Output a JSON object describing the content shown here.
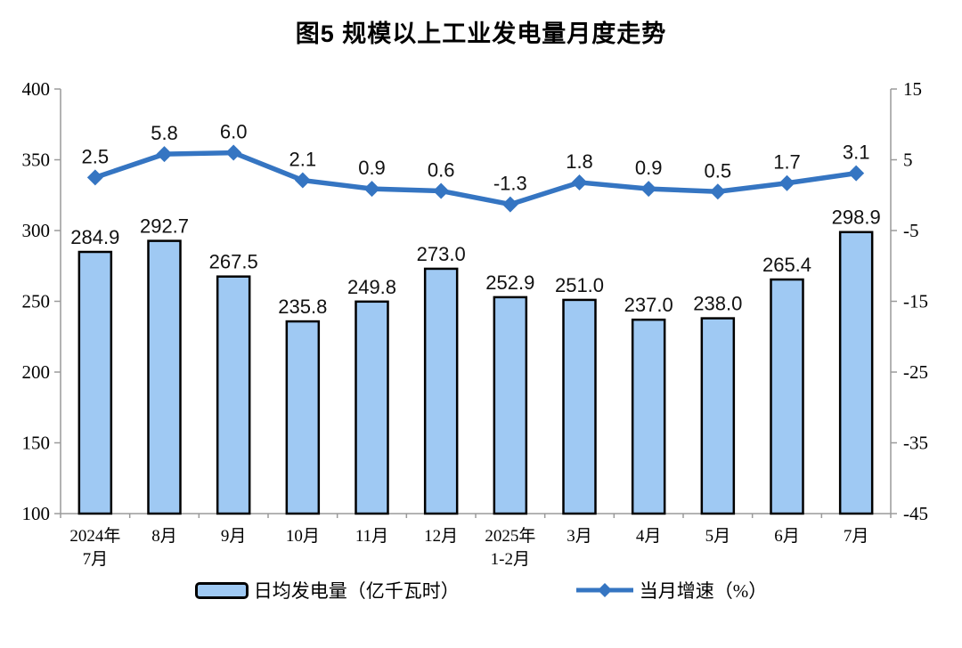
{
  "title": "图5 规模以上工业发电量月度走势",
  "colors": {
    "bar_fill": "#9FC9F3",
    "bar_border": "#000000",
    "line": "#3575C2",
    "axis_line": "#9A9A9A",
    "text": "#000000"
  },
  "chart_data": {
    "type": "combo_bar_line",
    "title": "图5 规模以上工业发电量月度走势",
    "categories": [
      "2024年\n7月",
      "8月",
      "9月",
      "10月",
      "11月",
      "12月",
      "2025年\n1-2月",
      "3月",
      "4月",
      "5月",
      "6月",
      "7月"
    ],
    "series": [
      {
        "name": "日均发电量（亿千瓦时）",
        "type": "bar",
        "axis": "left",
        "values": [
          284.9,
          292.7,
          267.5,
          235.8,
          249.8,
          273.0,
          252.9,
          251.0,
          237.0,
          238.0,
          265.4,
          298.9
        ]
      },
      {
        "name": "当月增速（%）",
        "type": "line",
        "axis": "right",
        "values": [
          2.5,
          5.8,
          6.0,
          2.1,
          0.9,
          0.6,
          -1.3,
          1.8,
          0.9,
          0.5,
          1.7,
          3.1
        ]
      }
    ],
    "left_axis": {
      "min": 100,
      "max": 400,
      "step": 50,
      "ticks": [
        400,
        350,
        300,
        250,
        200,
        150,
        100
      ]
    },
    "right_axis": {
      "min": -45,
      "max": 15,
      "step": 10,
      "ticks": [
        15,
        5,
        -5,
        -15,
        -25,
        -35,
        -45
      ]
    },
    "grid": false,
    "legend_position": "bottom",
    "data_label_decimals": 1
  }
}
